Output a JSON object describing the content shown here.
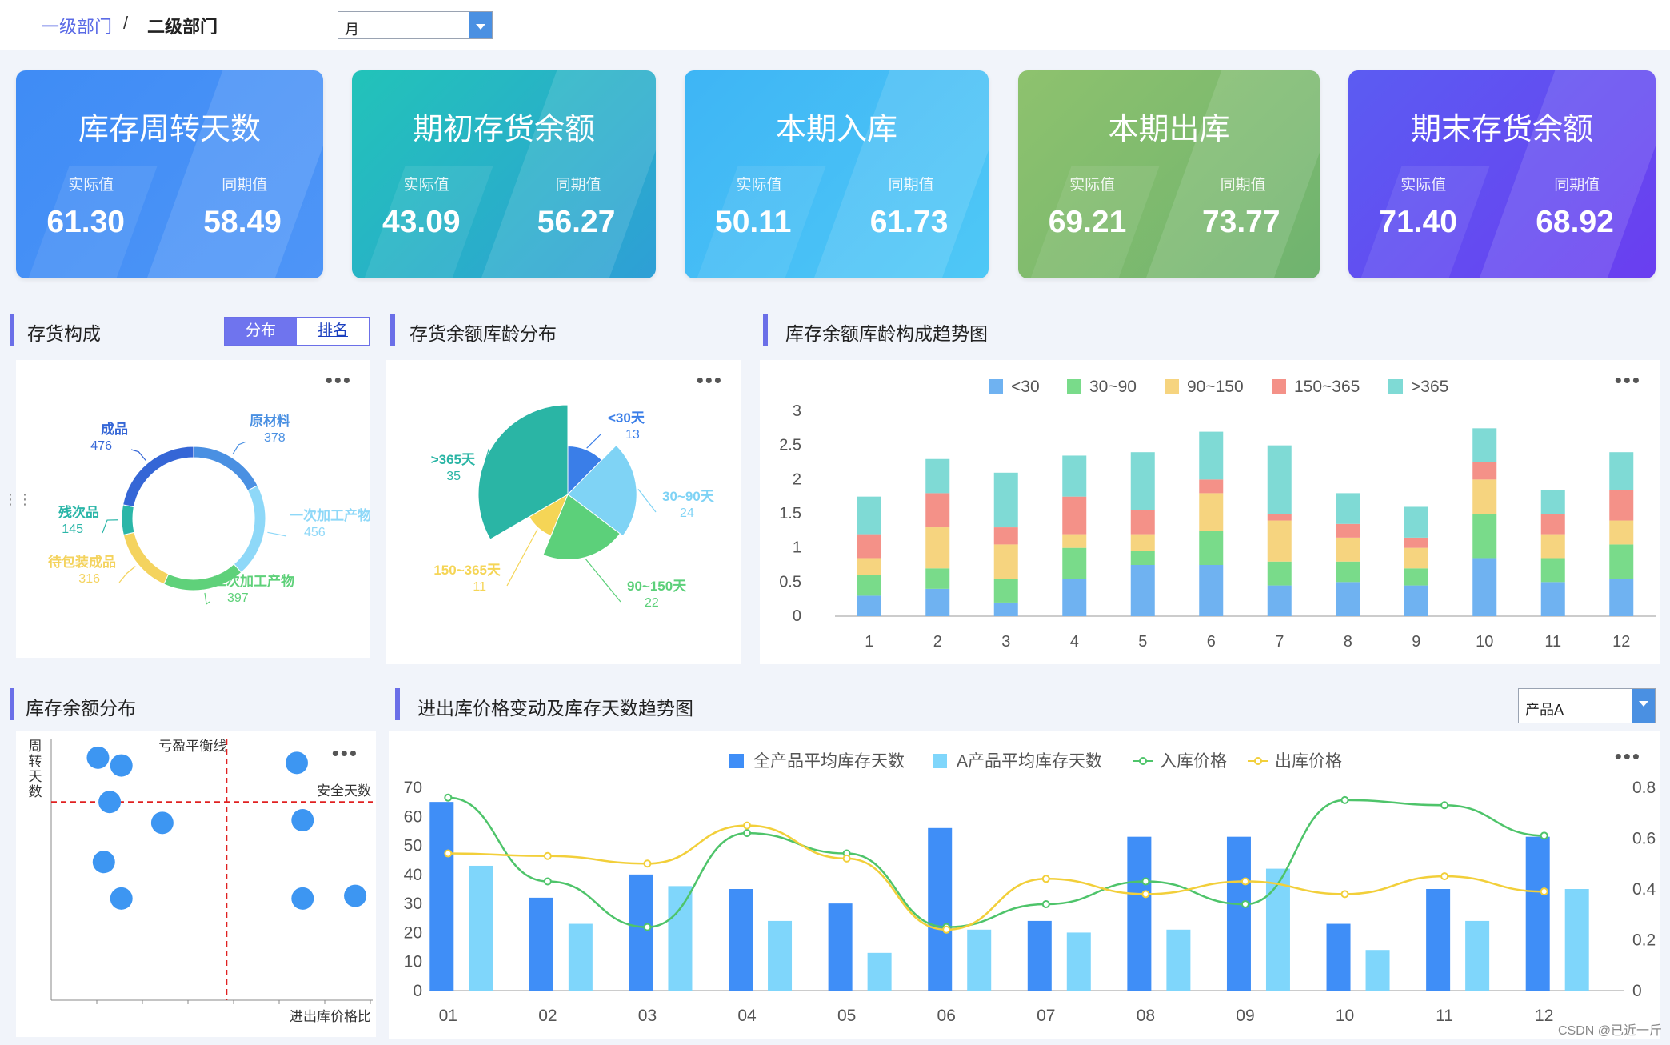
{
  "breadcrumb": {
    "level1": "一级部门",
    "sep": "/",
    "level2": "二级部门"
  },
  "period_select": {
    "value": "月"
  },
  "product_select": {
    "value": "产品A"
  },
  "kpis": [
    {
      "title": "库存周转天数",
      "actual_label": "实际值",
      "actual": "61.30",
      "yoy_label": "同期值",
      "yoy": "58.49",
      "color1": "#3f8cf5",
      "color2": "#4e95f7"
    },
    {
      "title": "期初存货余额",
      "actual_label": "实际值",
      "actual": "43.09",
      "yoy_label": "同期值",
      "yoy": "56.27",
      "color1": "#22c3b9",
      "color2": "#2e9fd6"
    },
    {
      "title": "本期入库",
      "actual_label": "实际值",
      "actual": "50.11",
      "yoy_label": "同期值",
      "yoy": "61.73",
      "color1": "#3eb5f5",
      "color2": "#4fc8f6"
    },
    {
      "title": "本期出库",
      "actual_label": "实际值",
      "actual": "69.21",
      "yoy_label": "同期值",
      "yoy": "73.77",
      "color1": "#8ec26e",
      "color2": "#6fb36f"
    },
    {
      "title": "期末存货余额",
      "actual_label": "实际值",
      "actual": "71.40",
      "yoy_label": "同期值",
      "yoy": "68.92",
      "color1": "#5b5cf2",
      "color2": "#6a3ef0"
    }
  ],
  "sections": {
    "composition": "存货构成",
    "aging": "存货余额库龄分布",
    "aging_trend": "库存余额库龄构成趋势图",
    "balance_dist": "库存余额分布",
    "price_trend": "进出库价格变动及库存天数趋势图"
  },
  "composition_tabs": {
    "dist": "分布",
    "rank": "排名"
  },
  "more_menu": "•••",
  "watermark": "CSDN @已近一斤",
  "chart_data": [
    {
      "type": "pie",
      "title": "存货构成",
      "labels": [
        "原材料",
        "一次加工产物",
        "二次加工产物",
        "待包装成品",
        "残次品",
        "成品"
      ],
      "values": [
        378,
        456,
        397,
        316,
        145,
        476
      ],
      "colors": [
        "#4a90e2",
        "#8ed8f8",
        "#5fd17a",
        "#f4d35e",
        "#2bb6a8",
        "#3566d6"
      ],
      "display_labels": [
        "一次加工产物"
      ]
    },
    {
      "type": "pie",
      "title": "存货余额库龄分布",
      "labels": [
        "<30天",
        "30~90天",
        "90~150天",
        "150~365天",
        ">365天"
      ],
      "values": [
        13,
        24,
        22,
        11,
        35
      ],
      "colors": [
        "#3a7ee8",
        "#7fd3f5",
        "#5cd07a",
        "#f5d556",
        "#2ab5a5"
      ]
    },
    {
      "type": "bar",
      "stacked": true,
      "title": "库存余额库龄构成趋势图",
      "categories": [
        "1",
        "2",
        "3",
        "4",
        "5",
        "6",
        "7",
        "8",
        "9",
        "10",
        "11",
        "12"
      ],
      "series": [
        {
          "name": "<30",
          "values": [
            0.3,
            0.4,
            0.2,
            0.55,
            0.75,
            0.75,
            0.45,
            0.5,
            0.45,
            0.85,
            0.5,
            0.55
          ],
          "color": "#6fb2f1"
        },
        {
          "name": "30~90",
          "values": [
            0.3,
            0.3,
            0.35,
            0.45,
            0.2,
            0.5,
            0.35,
            0.3,
            0.25,
            0.65,
            0.35,
            0.5
          ],
          "color": "#79db8a"
        },
        {
          "name": "90~150",
          "values": [
            0.25,
            0.6,
            0.5,
            0.2,
            0.25,
            0.55,
            0.6,
            0.35,
            0.3,
            0.5,
            0.35,
            0.35
          ],
          "color": "#f6d47f"
        },
        {
          "name": "150~365",
          "values": [
            0.35,
            0.5,
            0.25,
            0.55,
            0.35,
            0.2,
            0.1,
            0.2,
            0.15,
            0.25,
            0.3,
            0.45
          ],
          "color": "#f49188"
        },
        {
          "name": ">365",
          "values": [
            0.55,
            0.5,
            0.8,
            0.6,
            0.85,
            0.7,
            1.0,
            0.45,
            0.45,
            0.5,
            0.35,
            0.55
          ],
          "color": "#7fdad5"
        }
      ],
      "ylim": [
        0,
        3
      ],
      "yticks": [
        "0",
        "0.5",
        "1",
        "1.5",
        "2",
        "2.5",
        "3"
      ]
    },
    {
      "type": "scatter",
      "title": "库存余额分布",
      "xlabel": "进出库价格比",
      "ylabel": "周转天数",
      "annotations": {
        "vline": "亏盈平衡线",
        "hline": "安全天数"
      },
      "points": [
        [
          0.8,
          9.3
        ],
        [
          1.2,
          9.0
        ],
        [
          1.0,
          7.6
        ],
        [
          1.9,
          6.8
        ],
        [
          0.9,
          5.3
        ],
        [
          1.2,
          3.9
        ],
        [
          4.2,
          9.1
        ],
        [
          4.3,
          6.9
        ],
        [
          4.3,
          3.9
        ],
        [
          5.2,
          4.0
        ]
      ],
      "xlim": [
        0,
        5.5
      ],
      "ylim": [
        0,
        10
      ],
      "vline_x": 3.0,
      "hline_y": 7.6
    },
    {
      "type": "bar",
      "title": "进出库价格变动及库存天数趋势图",
      "categories": [
        "01",
        "02",
        "03",
        "04",
        "05",
        "06",
        "07",
        "08",
        "09",
        "10",
        "11",
        "12"
      ],
      "series": [
        {
          "name": "全产品平均库存天数",
          "type": "bar",
          "axis": "left",
          "values": [
            65,
            32,
            40,
            35,
            30,
            56,
            24,
            53,
            53,
            23,
            35,
            53
          ],
          "color": "#3f8ef7"
        },
        {
          "name": "A产品平均库存天数",
          "type": "bar",
          "axis": "left",
          "values": [
            43,
            23,
            36,
            24,
            13,
            21,
            20,
            21,
            42,
            14,
            24,
            35
          ],
          "color": "#7fd6fb"
        },
        {
          "name": "入库价格",
          "type": "line",
          "axis": "right",
          "values": [
            0.76,
            0.43,
            0.25,
            0.62,
            0.54,
            0.25,
            0.34,
            0.43,
            0.34,
            0.75,
            0.73,
            0.61
          ],
          "color": "#4ec46a"
        },
        {
          "name": "出库价格",
          "type": "line",
          "axis": "right",
          "values": [
            0.54,
            0.53,
            0.5,
            0.65,
            0.52,
            0.24,
            0.44,
            0.38,
            0.43,
            0.38,
            0.45,
            0.39
          ],
          "color": "#f2cf3a"
        }
      ],
      "ylim_left": [
        0,
        70
      ],
      "ylim_right": [
        0,
        0.8
      ],
      "yticks_left": [
        "0",
        "10",
        "20",
        "30",
        "40",
        "50",
        "60",
        "70"
      ],
      "yticks_right": [
        "0",
        "0.2",
        "0.4",
        "0.6",
        "0.8"
      ]
    }
  ]
}
